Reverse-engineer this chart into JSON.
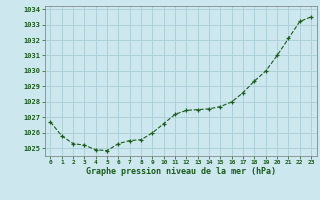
{
  "x": [
    0,
    1,
    2,
    3,
    4,
    5,
    6,
    7,
    8,
    9,
    10,
    11,
    12,
    13,
    14,
    15,
    16,
    17,
    18,
    19,
    20,
    21,
    22,
    23
  ],
  "y": [
    1026.7,
    1025.8,
    1025.3,
    1025.2,
    1024.9,
    1024.85,
    1025.3,
    1025.5,
    1025.55,
    1026.0,
    1026.6,
    1027.2,
    1027.45,
    1027.5,
    1027.55,
    1027.7,
    1028.0,
    1028.6,
    1029.35,
    1030.0,
    1031.0,
    1032.1,
    1033.2,
    1033.5
  ],
  "xlabel": "Graphe pression niveau de la mer (hPa)",
  "ylim": [
    1024.5,
    1034.2
  ],
  "yticks": [
    1025,
    1026,
    1027,
    1028,
    1029,
    1030,
    1031,
    1032,
    1033,
    1034
  ],
  "xticks": [
    0,
    1,
    2,
    3,
    4,
    5,
    6,
    7,
    8,
    9,
    10,
    11,
    12,
    13,
    14,
    15,
    16,
    17,
    18,
    19,
    20,
    21,
    22,
    23
  ],
  "line_color": "#1a5c1a",
  "marker_color": "#1a5c1a",
  "bg_color": "#cce8ee",
  "grid_color": "#aed0d8",
  "xlabel_color": "#1a5c1a",
  "tick_label_color": "#1a5c1a"
}
